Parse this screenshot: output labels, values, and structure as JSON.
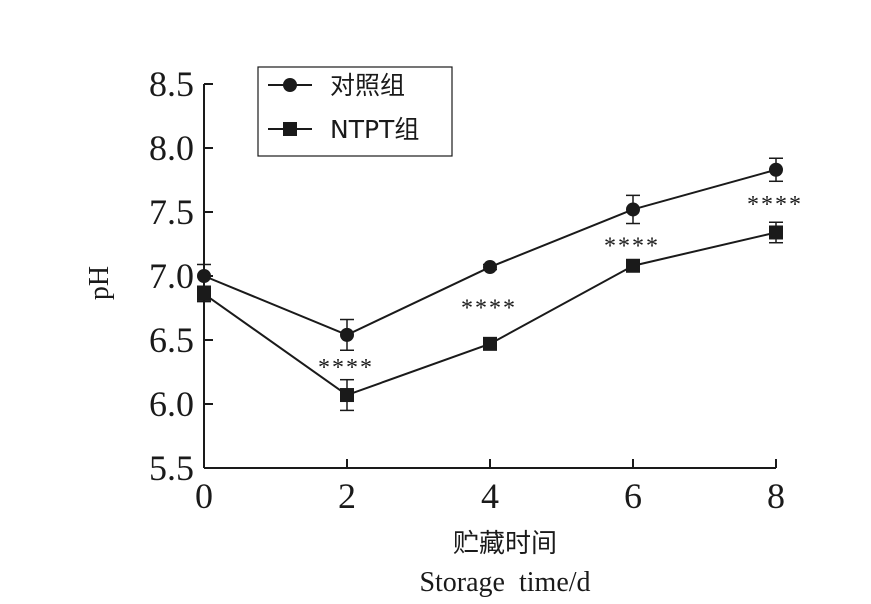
{
  "chart_data": {
    "type": "line",
    "x": [
      0,
      2,
      4,
      6,
      8
    ],
    "x_ticks": [
      "0",
      "2",
      "4",
      "6",
      "8"
    ],
    "y_ticks": [
      "5.5",
      "6.0",
      "6.5",
      "7.0",
      "7.5",
      "8.0",
      "8.5"
    ],
    "ylim": [
      5.5,
      8.5
    ],
    "xlim": [
      0,
      8
    ],
    "ylabel": "pH",
    "xlabel_cn": "贮藏时间",
    "xlabel_en": "Storage  time/d",
    "grid": false,
    "legend_position": "top-left",
    "series": [
      {
        "name": "对照组",
        "marker": "circle",
        "color": "#1a1a1a",
        "values": [
          7.0,
          6.54,
          7.07,
          7.52,
          7.83
        ],
        "errors": [
          0.09,
          0.12,
          0.02,
          0.11,
          0.09
        ]
      },
      {
        "name": "NTPT组",
        "marker": "square",
        "color": "#1a1a1a",
        "values": [
          6.86,
          6.07,
          6.47,
          7.08,
          7.34
        ],
        "errors": [
          0.06,
          0.12,
          0.02,
          0.02,
          0.08
        ]
      }
    ],
    "annotations": [
      {
        "x": 2,
        "text": "****"
      },
      {
        "x": 4,
        "text": "****"
      },
      {
        "x": 6,
        "text": "****"
      },
      {
        "x": 8,
        "text": "****"
      }
    ]
  }
}
